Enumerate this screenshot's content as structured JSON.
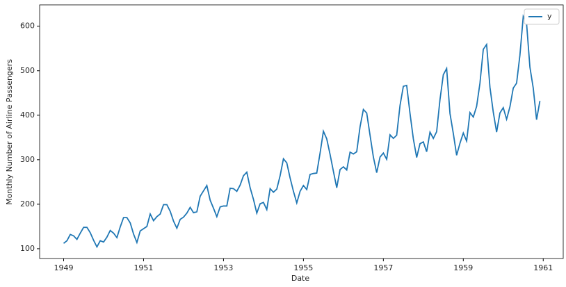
{
  "chart_data": {
    "type": "line",
    "x_label": "Date",
    "y_label": "Monthly Number of Airline Passengers",
    "x": [
      "1949-01",
      "1949-02",
      "1949-03",
      "1949-04",
      "1949-05",
      "1949-06",
      "1949-07",
      "1949-08",
      "1949-09",
      "1949-10",
      "1949-11",
      "1949-12",
      "1950-01",
      "1950-02",
      "1950-03",
      "1950-04",
      "1950-05",
      "1950-06",
      "1950-07",
      "1950-08",
      "1950-09",
      "1950-10",
      "1950-11",
      "1950-12",
      "1951-01",
      "1951-02",
      "1951-03",
      "1951-04",
      "1951-05",
      "1951-06",
      "1951-07",
      "1951-08",
      "1951-09",
      "1951-10",
      "1951-11",
      "1951-12",
      "1952-01",
      "1952-02",
      "1952-03",
      "1952-04",
      "1952-05",
      "1952-06",
      "1952-07",
      "1952-08",
      "1952-09",
      "1952-10",
      "1952-11",
      "1952-12",
      "1953-01",
      "1953-02",
      "1953-03",
      "1953-04",
      "1953-05",
      "1953-06",
      "1953-07",
      "1953-08",
      "1953-09",
      "1953-10",
      "1953-11",
      "1953-12",
      "1954-01",
      "1954-02",
      "1954-03",
      "1954-04",
      "1954-05",
      "1954-06",
      "1954-07",
      "1954-08",
      "1954-09",
      "1954-10",
      "1954-11",
      "1954-12",
      "1955-01",
      "1955-02",
      "1955-03",
      "1955-04",
      "1955-05",
      "1955-06",
      "1955-07",
      "1955-08",
      "1955-09",
      "1955-10",
      "1955-11",
      "1955-12",
      "1956-01",
      "1956-02",
      "1956-03",
      "1956-04",
      "1956-05",
      "1956-06",
      "1956-07",
      "1956-08",
      "1956-09",
      "1956-10",
      "1956-11",
      "1956-12",
      "1957-01",
      "1957-02",
      "1957-03",
      "1957-04",
      "1957-05",
      "1957-06",
      "1957-07",
      "1957-08",
      "1957-09",
      "1957-10",
      "1957-11",
      "1957-12",
      "1958-01",
      "1958-02",
      "1958-03",
      "1958-04",
      "1958-05",
      "1958-06",
      "1958-07",
      "1958-08",
      "1958-09",
      "1958-10",
      "1958-11",
      "1958-12",
      "1959-01",
      "1959-02",
      "1959-03",
      "1959-04",
      "1959-05",
      "1959-06",
      "1959-07",
      "1959-08",
      "1959-09",
      "1959-10",
      "1959-11",
      "1959-12",
      "1960-01",
      "1960-02",
      "1960-03",
      "1960-04",
      "1960-05",
      "1960-06",
      "1960-07",
      "1960-08",
      "1960-09",
      "1960-10",
      "1960-11",
      "1960-12"
    ],
    "series": [
      {
        "name": "y",
        "color": "#1f77b4",
        "values": [
          112,
          118,
          132,
          129,
          121,
          135,
          148,
          148,
          136,
          119,
          104,
          118,
          115,
          126,
          141,
          135,
          125,
          149,
          170,
          170,
          158,
          133,
          114,
          140,
          145,
          150,
          178,
          163,
          172,
          178,
          199,
          199,
          184,
          162,
          146,
          166,
          171,
          180,
          193,
          181,
          183,
          218,
          230,
          242,
          209,
          191,
          172,
          194,
          196,
          196,
          236,
          235,
          229,
          243,
          264,
          272,
          237,
          211,
          180,
          201,
          204,
          188,
          235,
          227,
          234,
          264,
          302,
          293,
          259,
          229,
          203,
          229,
          242,
          233,
          267,
          269,
          270,
          315,
          364,
          347,
          312,
          274,
          237,
          278,
          284,
          277,
          317,
          313,
          318,
          374,
          413,
          405,
          355,
          306,
          271,
          306,
          315,
          301,
          356,
          348,
          355,
          422,
          465,
          467,
          404,
          347,
          305,
          336,
          340,
          318,
          362,
          348,
          363,
          435,
          491,
          505,
          404,
          359,
          310,
          337,
          360,
          342,
          406,
          396,
          420,
          472,
          548,
          559,
          463,
          407,
          362,
          405,
          417,
          391,
          419,
          461,
          472,
          535,
          622,
          606,
          508,
          461,
          390,
          432
        ]
      }
    ],
    "xlim": [
      1948.4,
      1961.5
    ],
    "xticks": [
      1949,
      1951,
      1953,
      1955,
      1957,
      1959,
      1961
    ],
    "ylim": [
      78,
      648
    ],
    "yticks": [
      100,
      200,
      300,
      400,
      500,
      600
    ],
    "grid": false,
    "legend": "upper right"
  }
}
